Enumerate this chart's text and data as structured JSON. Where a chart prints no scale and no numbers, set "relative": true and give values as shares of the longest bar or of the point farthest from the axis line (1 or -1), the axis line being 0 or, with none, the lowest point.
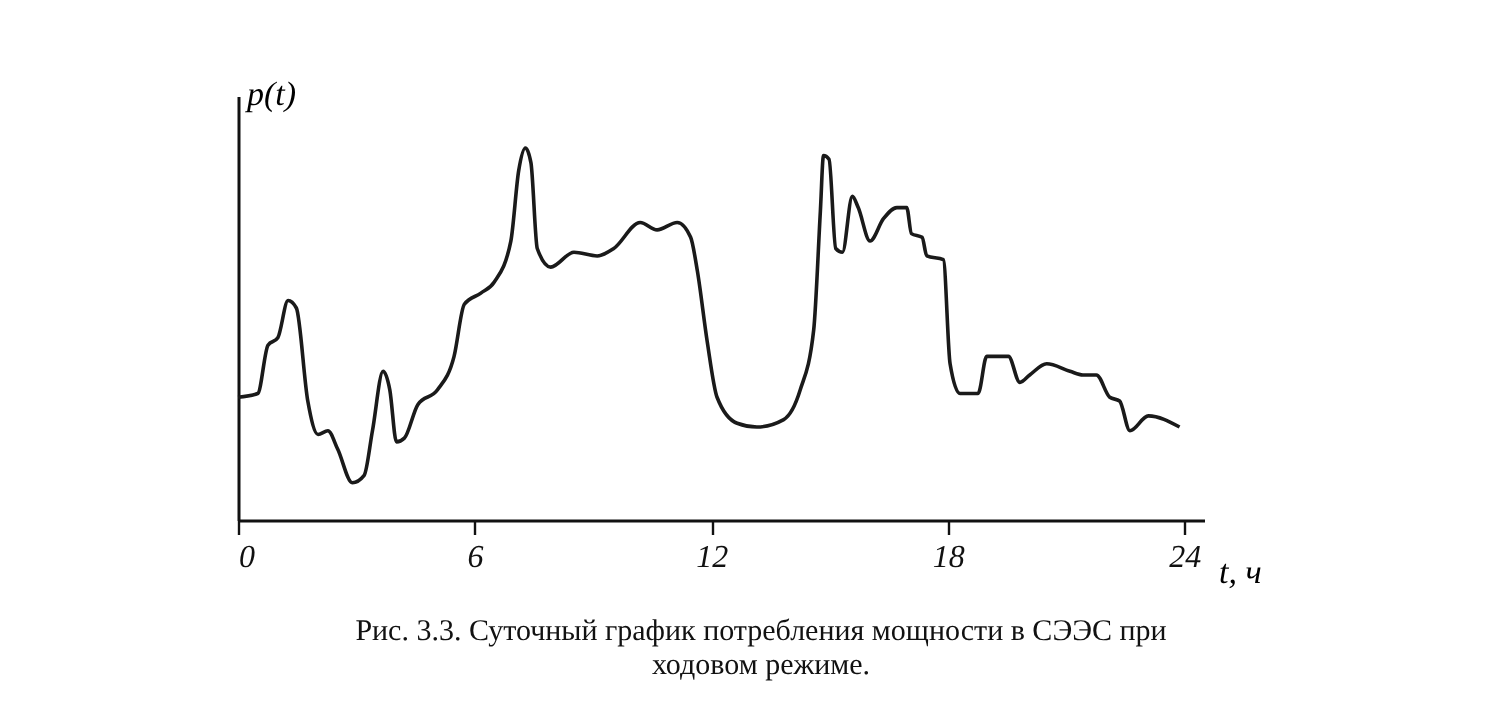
{
  "chart_data": {
    "type": "line",
    "relative": true,
    "xlabel": "t, ч",
    "ylabel": "p(t)",
    "annotations": [
      "Рис. 3.3. Суточный график потребления мощности в СЭЭС при ходовом режиме."
    ],
    "xlim": [
      0,
      24.5
    ],
    "xticks": [
      0,
      6,
      12,
      18,
      24
    ],
    "grid": false,
    "marker": "none",
    "line_style": "solid",
    "x": [
      0,
      0.5,
      0.76,
      1.01,
      1.27,
      1.48,
      1.77,
      2.03,
      2.28,
      2.53,
      2.9,
      3.2,
      3.41,
      3.68,
      3.85,
      4.02,
      4.22,
      4.56,
      5.06,
      5.48,
      5.74,
      6.16,
      6.5,
      6.92,
      7.12,
      7.29,
      7.43,
      7.59,
      7.93,
      8.52,
      9.11,
      9.53,
      10.2,
      10.63,
      11.14,
      11.48,
      11.65,
      11.9,
      12.15,
      12.66,
      13.16,
      13.84,
      14.26,
      14.6,
      14.77,
      14.85,
      14.99,
      15.16,
      15.33,
      15.58,
      15.73,
      16.03,
      16.37,
      16.71,
      16.96,
      17.08,
      17.35,
      17.47,
      17.89,
      18.06,
      18.31,
      18.77,
      18.99,
      19.54,
      19.83,
      20.08,
      20.51,
      21.1,
      21.43,
      21.77,
      22.11,
      22.36,
      22.62,
      23.09,
      23.88
    ],
    "series": [
      {
        "color": "#1a1a1a",
        "values": [
          0.33,
          0.34,
          0.47,
          0.49,
          0.59,
          0.57,
          0.32,
          0.23,
          0.24,
          0.19,
          0.1,
          0.12,
          0.24,
          0.4,
          0.35,
          0.21,
          0.22,
          0.31,
          0.35,
          0.44,
          0.58,
          0.61,
          0.64,
          0.75,
          0.94,
          1.0,
          0.96,
          0.73,
          0.68,
          0.72,
          0.71,
          0.73,
          0.8,
          0.78,
          0.8,
          0.76,
          0.67,
          0.48,
          0.33,
          0.26,
          0.25,
          0.27,
          0.35,
          0.51,
          0.83,
          0.98,
          0.97,
          0.73,
          0.72,
          0.87,
          0.84,
          0.75,
          0.81,
          0.84,
          0.84,
          0.77,
          0.76,
          0.71,
          0.7,
          0.42,
          0.34,
          0.34,
          0.44,
          0.44,
          0.37,
          0.39,
          0.42,
          0.4,
          0.39,
          0.39,
          0.33,
          0.32,
          0.24,
          0.28,
          0.25
        ]
      }
    ]
  }
}
